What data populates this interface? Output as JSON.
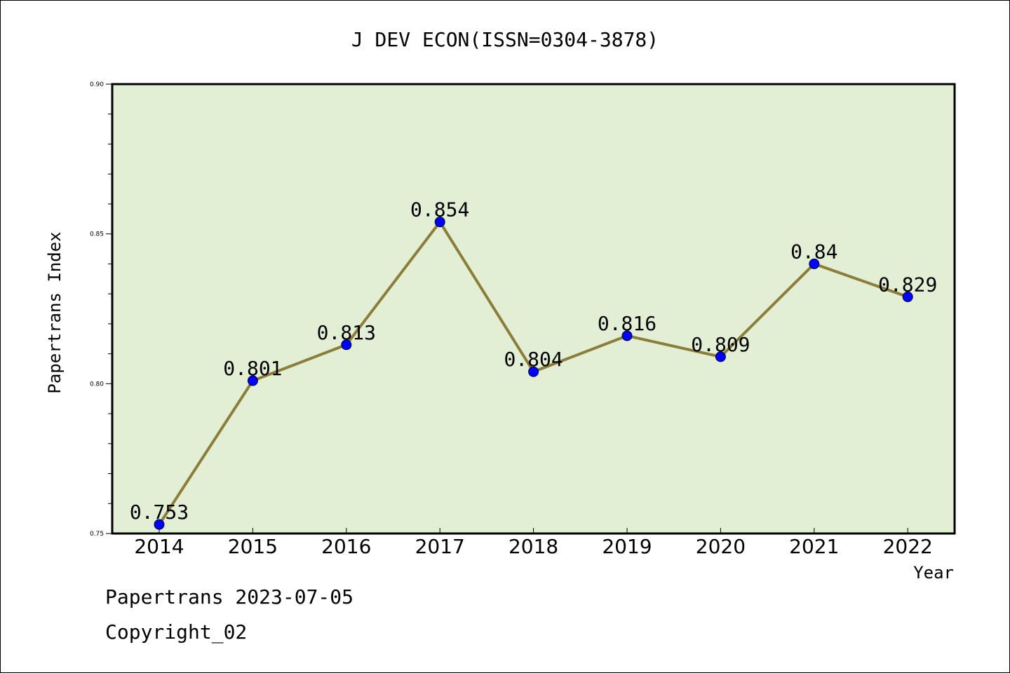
{
  "chart_data": {
    "type": "line",
    "title": "J DEV ECON(ISSN=0304-3878)",
    "xlabel": "Year",
    "ylabel": "Papertrans Index",
    "categories": [
      "2014",
      "2015",
      "2016",
      "2017",
      "2018",
      "2019",
      "2020",
      "2021",
      "2022"
    ],
    "series": [
      {
        "values": [
          0.753,
          0.801,
          0.813,
          0.854,
          0.804,
          0.816,
          0.809,
          0.84,
          0.829
        ],
        "labels": [
          "0.753",
          "0.801",
          "0.813",
          "0.854",
          "0.804",
          "0.816",
          "0.809",
          "0.84",
          "0.829"
        ]
      }
    ],
    "ylim": [
      0.75,
      0.9
    ],
    "yticks": [
      "0.75",
      "0.80",
      "0.85",
      "0.90"
    ],
    "grid": false,
    "colors": {
      "plot_background": "#e2efd5",
      "line": "#8b7d3a",
      "marker": "#0000ff"
    }
  },
  "footer": {
    "line1": "Papertrans 2023-07-05",
    "line2": "Copyright_02"
  }
}
